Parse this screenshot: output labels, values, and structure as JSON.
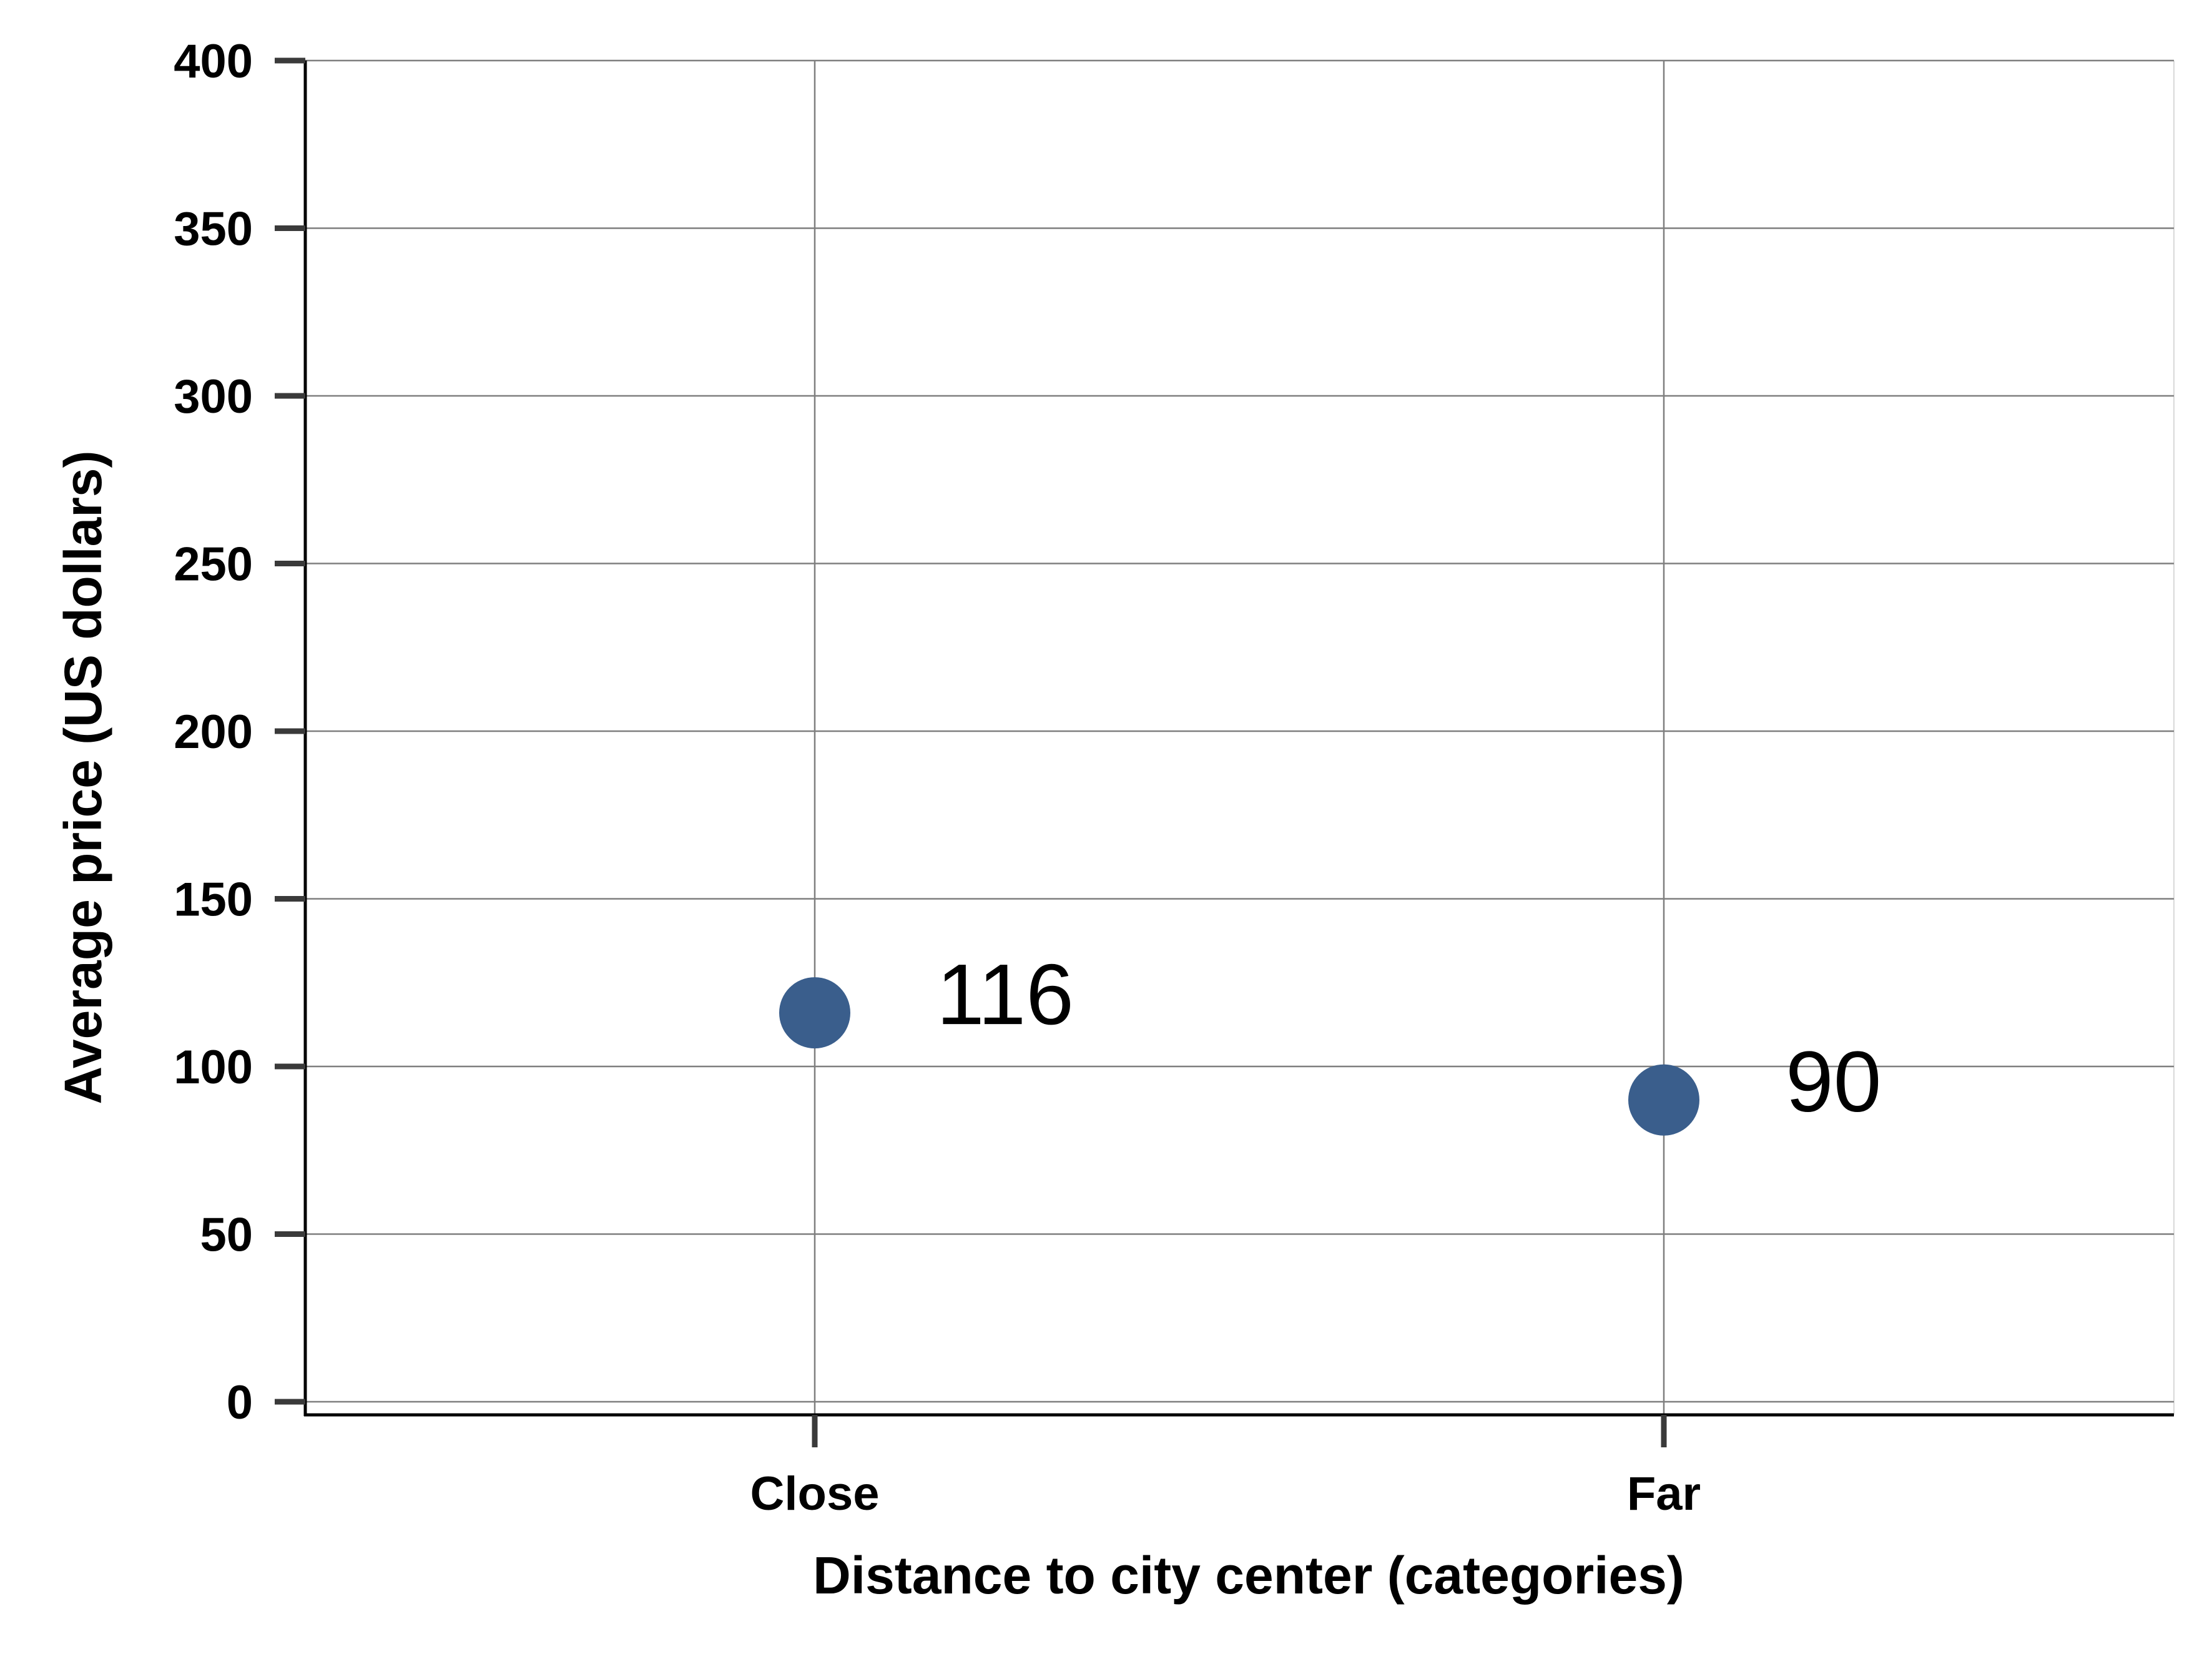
{
  "chart_data": {
    "type": "scatter",
    "categories": [
      "Close",
      "Far"
    ],
    "values": [
      116,
      90
    ],
    "data_labels": [
      "116",
      "90"
    ],
    "xlabel": "Distance to city center (categories)",
    "ylabel": "Average price (US dollars)",
    "ylim": [
      0,
      400
    ],
    "yticks": [
      0,
      50,
      100,
      150,
      200,
      250,
      300,
      350,
      400
    ],
    "ytick_labels": [
      "0",
      "50",
      "100",
      "150",
      "200",
      "250",
      "300",
      "350",
      "400"
    ],
    "grid": true,
    "legend": "none",
    "marker_color": "#3a5e8c"
  }
}
